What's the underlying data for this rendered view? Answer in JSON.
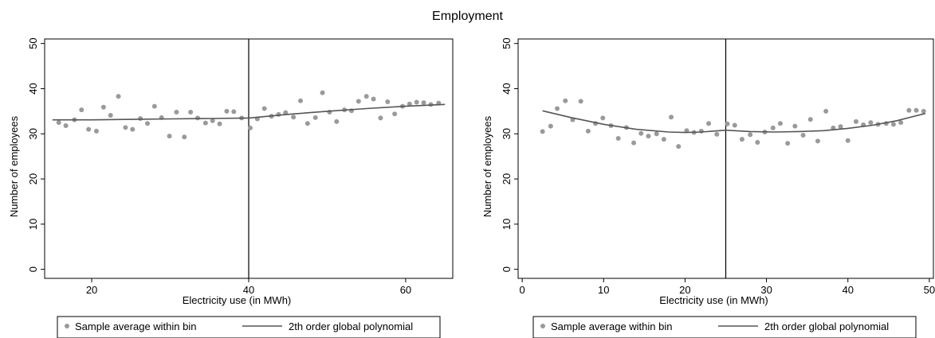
{
  "figure_title": "Employment",
  "chart_data": [
    {
      "type": "scatter",
      "title": "",
      "xlabel": "Electricity use (in MWh)",
      "ylabel": "Number of employees",
      "xlim": [
        14,
        66
      ],
      "ylim": [
        -2,
        51
      ],
      "xticks": [
        20,
        40,
        60
      ],
      "yticks": [
        0,
        10,
        20,
        30,
        40,
        50
      ],
      "threshold": 40,
      "grid": false,
      "legend_position": "bottom",
      "legend": {
        "scatter_label": "Sample average within bin",
        "line_label": "2th order global polynomial"
      },
      "scatter": {
        "name": "Sample average within bin",
        "color": "#9a9a9a",
        "x": [
          15.8,
          16.7,
          17.8,
          18.7,
          19.6,
          20.6,
          21.5,
          22.4,
          23.4,
          24.3,
          25.2,
          26.2,
          27.1,
          28.0,
          28.9,
          29.9,
          30.8,
          31.8,
          32.6,
          33.5,
          34.5,
          35.4,
          36.3,
          37.2,
          38.1,
          39.1,
          40.2,
          41.1,
          42.0,
          42.9,
          43.8,
          44.7,
          45.7,
          46.6,
          47.5,
          48.5,
          49.4,
          50.3,
          51.2,
          52.2,
          53.1,
          54.0,
          55.0,
          55.9,
          56.8,
          57.7,
          58.6,
          59.6,
          60.5,
          61.4,
          62.3,
          63.2,
          64.2
        ],
        "y": [
          32.5,
          31.8,
          33.1,
          35.3,
          31.0,
          30.6,
          35.9,
          34.1,
          38.3,
          31.4,
          31.0,
          33.4,
          32.3,
          36.1,
          33.6,
          29.5,
          34.8,
          29.3,
          34.8,
          33.5,
          32.4,
          32.9,
          32.2,
          35.0,
          34.9,
          33.5,
          31.3,
          33.3,
          35.6,
          33.9,
          34.3,
          34.7,
          33.7,
          37.3,
          32.3,
          33.6,
          39.1,
          34.8,
          32.7,
          35.3,
          35.1,
          37.2,
          38.3,
          37.7,
          33.5,
          37.1,
          34.4,
          36.1,
          36.6,
          37.0,
          36.9,
          36.5,
          36.8
        ]
      },
      "fit": {
        "name": "2th order global polynomial",
        "color": "#555555",
        "segments": [
          {
            "x": [
              15,
              20,
              25,
              30,
              35,
              40
            ],
            "y": [
              33.1,
              33.1,
              33.2,
              33.3,
              33.4,
              33.5
            ]
          },
          {
            "x": [
              40,
              45,
              50,
              55,
              60,
              65
            ],
            "y": [
              33.5,
              34.3,
              35.0,
              35.6,
              36.1,
              36.5
            ]
          }
        ]
      }
    },
    {
      "type": "scatter",
      "title": "",
      "xlabel": "Electricity use (in MWh)",
      "ylabel": "Number of employees",
      "xlim": [
        -0.5,
        50.5
      ],
      "ylim": [
        -2,
        51
      ],
      "xticks": [
        0,
        10,
        20,
        30,
        40,
        50
      ],
      "yticks": [
        0,
        10,
        20,
        30,
        40,
        50
      ],
      "threshold": 25,
      "grid": false,
      "legend_position": "bottom",
      "legend": {
        "scatter_label": "Sample average within bin",
        "line_label": "2th order global polynomial"
      },
      "scatter": {
        "name": "Sample average within bin",
        "color": "#9a9a9a",
        "x": [
          2.5,
          3.5,
          4.3,
          5.3,
          6.2,
          7.2,
          8.1,
          9.0,
          9.9,
          10.9,
          11.8,
          12.8,
          13.7,
          14.6,
          15.5,
          16.5,
          17.4,
          18.3,
          19.2,
          20.2,
          21.1,
          22.0,
          22.9,
          23.9,
          25.2,
          26.1,
          27.0,
          28.0,
          28.9,
          29.8,
          30.8,
          31.7,
          32.6,
          33.5,
          34.5,
          35.4,
          36.3,
          37.3,
          38.2,
          39.1,
          40.0,
          41.0,
          41.9,
          42.8,
          43.7,
          44.7,
          45.6,
          46.5,
          47.5,
          48.4,
          49.3
        ],
        "y": [
          30.5,
          31.7,
          35.6,
          37.3,
          33.1,
          37.2,
          30.6,
          32.3,
          33.5,
          31.8,
          29.0,
          31.4,
          28.0,
          30.1,
          29.5,
          30.0,
          28.8,
          33.7,
          27.2,
          30.7,
          30.3,
          30.6,
          32.3,
          29.9,
          32.2,
          31.9,
          28.8,
          29.8,
          28.1,
          30.4,
          31.3,
          32.3,
          27.9,
          31.7,
          29.7,
          33.2,
          28.4,
          35.0,
          31.3,
          31.6,
          28.5,
          32.7,
          32.0,
          32.5,
          32.1,
          32.3,
          32.1,
          32.5,
          35.2,
          35.2,
          35.0
        ]
      },
      "fit": {
        "name": "2th order global polynomial",
        "color": "#555555",
        "segments": [
          {
            "x": [
              2.5,
              6,
              10,
              14,
              18,
              20,
              22,
              25
            ],
            "y": [
              35.1,
              33.6,
              32.1,
              31.0,
              30.4,
              30.3,
              30.4,
              30.8
            ]
          },
          {
            "x": [
              25,
              28,
              31,
              34,
              37,
              40,
              43,
              46,
              49.5
            ],
            "y": [
              30.8,
              30.5,
              30.4,
              30.5,
              30.7,
              31.2,
              31.9,
              32.9,
              34.5
            ]
          }
        ]
      }
    }
  ]
}
